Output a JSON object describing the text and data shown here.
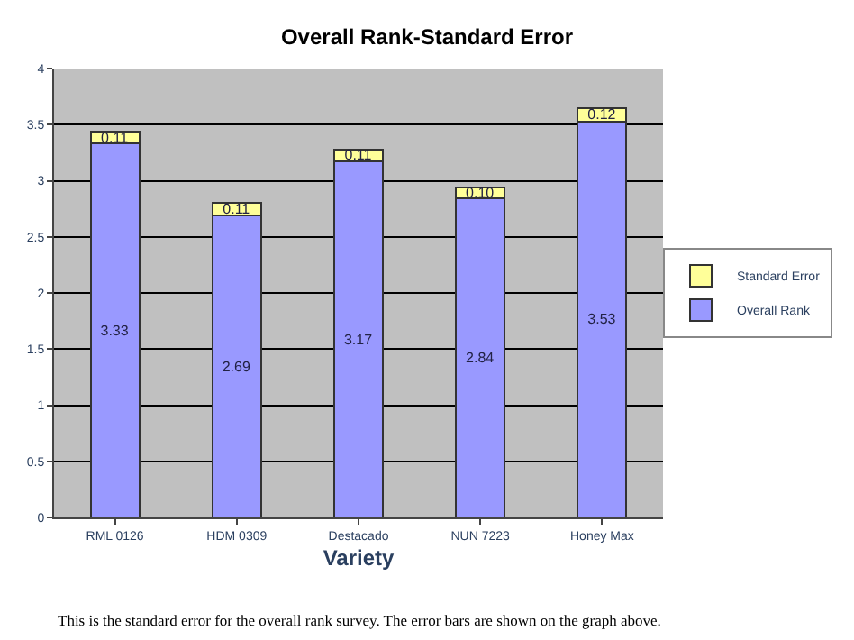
{
  "chart_data": {
    "type": "bar",
    "stacked": true,
    "title": "Overall Rank-Standard Error",
    "xlabel": "Variety",
    "categories": [
      "RML 0126",
      "HDM 0309",
      "Destacado",
      "NUN 7223",
      "Honey Max"
    ],
    "series": [
      {
        "name": "Overall Rank",
        "color": "#9999ff",
        "values": [
          3.33,
          2.69,
          3.17,
          2.84,
          3.53
        ]
      },
      {
        "name": "Standard Error",
        "color": "#ffff99",
        "values": [
          0.11,
          0.11,
          0.11,
          0.1,
          0.12
        ],
        "value_labels": [
          "0.11",
          "0.11",
          "0.11",
          "0.10",
          "0.12"
        ]
      }
    ],
    "data_labels": true,
    "ylim": [
      0,
      4
    ],
    "yticks": [
      0,
      0.5,
      1,
      1.5,
      2,
      2.5,
      3,
      3.5,
      4
    ],
    "grid": "y",
    "legend": "right",
    "annotations": [
      "This is the standard error for the overall rank survey. The error bars are shown on the graph above."
    ]
  }
}
